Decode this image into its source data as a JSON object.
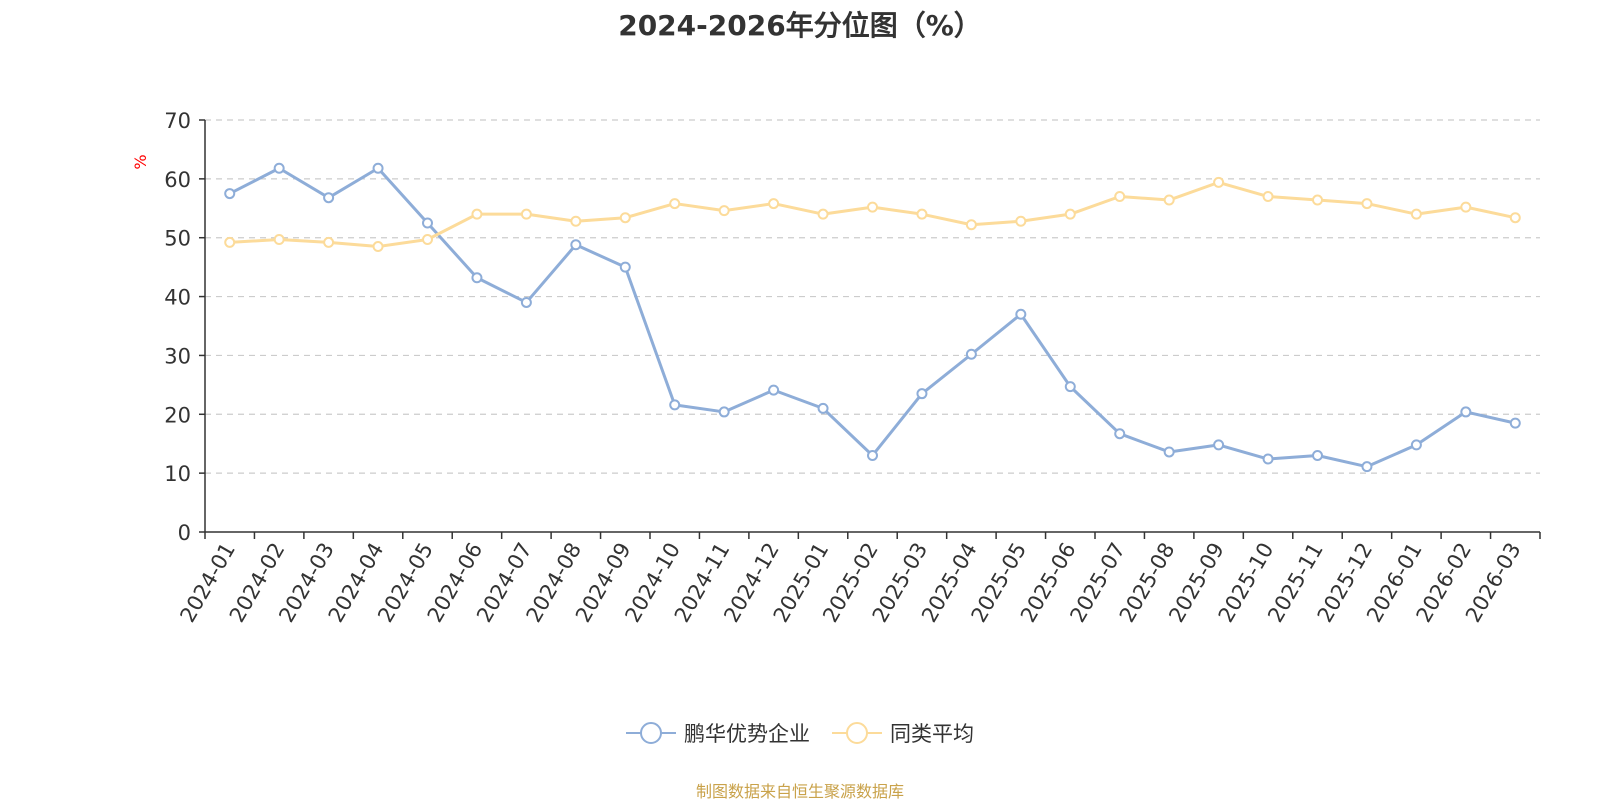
{
  "title": "2024-2026年分位图（%）",
  "y_unit_label": "%",
  "legend": [
    {
      "label": "鹏华优势企业",
      "color": "#8eadd8"
    },
    {
      "label": "同类平均",
      "color": "#fcdb9a"
    }
  ],
  "source_note": "制图数据来自恒生聚源数据库",
  "colors": {
    "axis": "#333333",
    "grid": "#cccccc",
    "unit_label": "#ff0000"
  },
  "chart_data": {
    "type": "line",
    "title": "2024-2026年分位图（%）",
    "xlabel": "",
    "ylabel": "%",
    "ylim": [
      0,
      70
    ],
    "yticks": [
      0,
      10,
      20,
      30,
      40,
      50,
      60,
      70
    ],
    "grid": true,
    "legend_position": "bottom",
    "categories": [
      "2024-01",
      "2024-02",
      "2024-03",
      "2024-04",
      "2024-05",
      "2024-06",
      "2024-07",
      "2024-08",
      "2024-09",
      "2024-10",
      "2024-11",
      "2024-12",
      "2025-01",
      "2025-02",
      "2025-03",
      "2025-04",
      "2025-05",
      "2025-06",
      "2025-07",
      "2025-08",
      "2025-09",
      "2025-10",
      "2025-11",
      "2025-12",
      "2026-01",
      "2026-02",
      "2026-03"
    ],
    "series": [
      {
        "name": "鹏华优势企业",
        "color": "#8eadd8",
        "values": [
          57.5,
          61.8,
          56.8,
          61.8,
          52.5,
          43.2,
          39.0,
          48.8,
          45.0,
          21.6,
          20.4,
          24.1,
          21.0,
          13.0,
          23.5,
          30.2,
          37.0,
          24.7,
          16.7,
          13.6,
          14.8,
          12.4,
          13.0,
          11.1,
          14.8,
          20.4,
          18.5
        ]
      },
      {
        "name": "同类平均",
        "color": "#fcdb9a",
        "values": [
          49.2,
          49.7,
          49.2,
          48.5,
          49.7,
          54.0,
          54.0,
          52.8,
          53.4,
          55.8,
          54.6,
          55.8,
          54.0,
          55.2,
          54.0,
          52.2,
          52.8,
          54.0,
          57.0,
          56.4,
          59.4,
          57.0,
          56.4,
          55.8,
          54.0,
          55.2,
          53.4
        ]
      }
    ]
  }
}
